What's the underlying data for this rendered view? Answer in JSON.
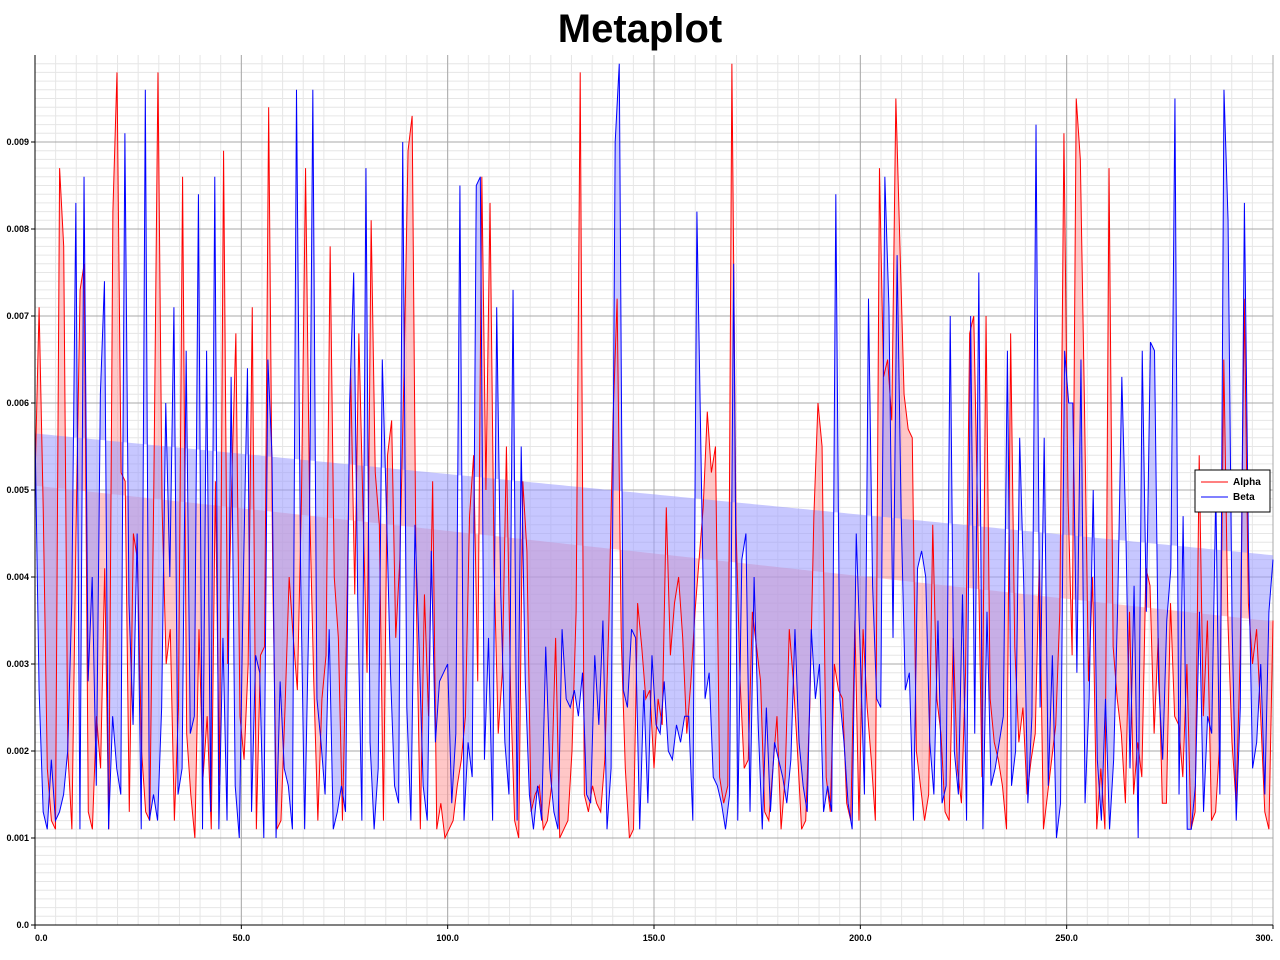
{
  "chart_data": {
    "type": "line",
    "title": "Metaplot",
    "xlabel": "",
    "ylabel": "",
    "xlim": [
      0,
      300
    ],
    "ylim": [
      0,
      0.01
    ],
    "x_ticks": [
      0,
      50,
      100,
      150,
      200,
      250,
      300
    ],
    "x_tick_labels": [
      "0.0",
      "50.0",
      "100.0",
      "150.0",
      "200.0",
      "250.0",
      "300."
    ],
    "y_ticks": [
      0,
      0.001,
      0.002,
      0.003,
      0.004,
      0.005,
      0.006,
      0.007,
      0.008,
      0.009
    ],
    "y_tick_labels": [
      "0.0",
      "0.001",
      "0.002",
      "0.003",
      "0.004",
      "0.005",
      "0.006",
      "0.007",
      "0.008",
      "0.009"
    ],
    "grid": true,
    "legend_position": "right",
    "fill_to_trend": true,
    "series": [
      {
        "name": "Alpha",
        "color": "#ff0000",
        "fill_color": "#ff9999",
        "trend": [
          0.00505,
          0.00349
        ],
        "values": [
          0.0051,
          0.0071,
          0.0048,
          0.0018,
          0.0012,
          0.0011,
          0.0087,
          0.0078,
          0.002,
          0.0011,
          0.0045,
          0.0073,
          0.0076,
          0.0013,
          0.0011,
          0.0024,
          0.0018,
          0.0041,
          0.0011,
          0.0082,
          0.0098,
          0.0052,
          0.0051,
          0.0013,
          0.0045,
          0.0042,
          0.002,
          0.0013,
          0.0012,
          0.0051,
          0.0098,
          0.0048,
          0.003,
          0.0034,
          0.0012,
          0.0025,
          0.0086,
          0.0022,
          0.0015,
          0.001,
          0.0034,
          0.0017,
          0.0024,
          0.0011,
          0.0051,
          0.0016,
          0.0089,
          0.003,
          0.0051,
          0.0068,
          0.0024,
          0.0019,
          0.003,
          0.0071,
          0.0011,
          0.0031,
          0.0032,
          0.0094,
          0.004,
          0.0011,
          0.0012,
          0.0025,
          0.004,
          0.0033,
          0.0027,
          0.0049,
          0.0087,
          0.0048,
          0.0028,
          0.0012,
          0.0026,
          0.0031,
          0.0078,
          0.004,
          0.0033,
          0.0012,
          0.0034,
          0.0064,
          0.0038,
          0.0068,
          0.0048,
          0.0029,
          0.0081,
          0.0052,
          0.0046,
          0.0012,
          0.0054,
          0.0058,
          0.0033,
          0.0042,
          0.0063,
          0.0089,
          0.0093,
          0.0038,
          0.0011,
          0.0038,
          0.0024,
          0.0051,
          0.0011,
          0.0014,
          0.001,
          0.0011,
          0.0012,
          0.0016,
          0.0019,
          0.0024,
          0.0047,
          0.0054,
          0.0028,
          0.0086,
          0.005,
          0.0083,
          0.0041,
          0.0022,
          0.0029,
          0.0055,
          0.0027,
          0.0012,
          0.001,
          0.0051,
          0.0043,
          0.0013,
          0.0015,
          0.0016,
          0.0011,
          0.0012,
          0.0016,
          0.0033,
          0.001,
          0.0011,
          0.0012,
          0.002,
          0.0036,
          0.0098,
          0.0015,
          0.0013,
          0.0016,
          0.0014,
          0.0013,
          0.0019,
          0.0035,
          0.0058,
          0.0072,
          0.0033,
          0.0018,
          0.001,
          0.0011,
          0.0037,
          0.0032,
          0.0026,
          0.0027,
          0.0018,
          0.0026,
          0.0023,
          0.0048,
          0.0031,
          0.0037,
          0.004,
          0.0033,
          0.0022,
          0.0028,
          0.0036,
          0.0042,
          0.0048,
          0.0059,
          0.0052,
          0.0055,
          0.0017,
          0.0014,
          0.0016,
          0.0099,
          0.0046,
          0.0028,
          0.0018,
          0.0019,
          0.0036,
          0.0032,
          0.0028,
          0.0013,
          0.0012,
          0.0018,
          0.0024,
          0.0011,
          0.0017,
          0.0034,
          0.0028,
          0.002,
          0.0011,
          0.0012,
          0.0025,
          0.0047,
          0.006,
          0.0055,
          0.0017,
          0.0013,
          0.003,
          0.0027,
          0.0026,
          0.0014,
          0.0012,
          0.0035,
          0.0012,
          0.0034,
          0.0025,
          0.0019,
          0.0012,
          0.0087,
          0.0063,
          0.0065,
          0.0058,
          0.0095,
          0.0078,
          0.0061,
          0.0057,
          0.0056,
          0.002,
          0.0016,
          0.0012,
          0.0015,
          0.0046,
          0.0026,
          0.0022,
          0.0013,
          0.0012,
          0.0033,
          0.0018,
          0.0014,
          0.0029,
          0.0068,
          0.007,
          0.0046,
          0.0017,
          0.007,
          0.0026,
          0.0021,
          0.0019,
          0.0016,
          0.0011,
          0.0068,
          0.0032,
          0.0021,
          0.0025,
          0.0015,
          0.0019,
          0.0022,
          0.0042,
          0.0011,
          0.0015,
          0.0019,
          0.0023,
          0.0036,
          0.0091,
          0.0049,
          0.0031,
          0.0095,
          0.0088,
          0.006,
          0.0028,
          0.004,
          0.0011,
          0.0018,
          0.0011,
          0.0087,
          0.0032,
          0.0026,
          0.0022,
          0.0014,
          0.0036,
          0.0015,
          0.0021,
          0.0017,
          0.0041,
          0.0039,
          0.0022,
          0.0033,
          0.0014,
          0.0014,
          0.0037,
          0.0024,
          0.0023,
          0.0017,
          0.003,
          0.0011,
          0.0013,
          0.0054,
          0.0024,
          0.0035,
          0.0012,
          0.0013,
          0.0021,
          0.0065,
          0.0035,
          0.0021,
          0.0014,
          0.0031,
          0.0072,
          0.0037,
          0.003,
          0.0034,
          0.0024,
          0.0013,
          0.0011,
          0.0035
        ]
      },
      {
        "name": "Beta",
        "color": "#0000ff",
        "fill_color": "#9999ff",
        "trend": [
          0.00565,
          0.00425
        ],
        "values": [
          0.0057,
          0.0027,
          0.0013,
          0.0011,
          0.0019,
          0.0012,
          0.0013,
          0.0015,
          0.002,
          0.0037,
          0.0083,
          0.0011,
          0.0086,
          0.0028,
          0.004,
          0.0016,
          0.0061,
          0.0074,
          0.0011,
          0.0024,
          0.0018,
          0.0015,
          0.0091,
          0.0037,
          0.0023,
          0.0045,
          0.0011,
          0.0096,
          0.0012,
          0.0015,
          0.0012,
          0.0025,
          0.006,
          0.004,
          0.0071,
          0.0015,
          0.0018,
          0.0066,
          0.0022,
          0.0024,
          0.0084,
          0.0011,
          0.0066,
          0.0013,
          0.0086,
          0.0011,
          0.0033,
          0.0012,
          0.0063,
          0.0016,
          0.001,
          0.004,
          0.0064,
          0.0013,
          0.0031,
          0.0029,
          0.001,
          0.0065,
          0.0054,
          0.001,
          0.0028,
          0.0018,
          0.0016,
          0.0011,
          0.0096,
          0.0041,
          0.0011,
          0.0035,
          0.0096,
          0.0026,
          0.0021,
          0.0015,
          0.0034,
          0.0011,
          0.0013,
          0.0016,
          0.0013,
          0.006,
          0.0075,
          0.0037,
          0.0012,
          0.0087,
          0.0021,
          0.0011,
          0.0018,
          0.0065,
          0.0048,
          0.0029,
          0.0016,
          0.0014,
          0.009,
          0.0025,
          0.0012,
          0.0046,
          0.0032,
          0.0016,
          0.0012,
          0.0043,
          0.0021,
          0.0028,
          0.0029,
          0.003,
          0.0014,
          0.0022,
          0.0085,
          0.0012,
          0.0021,
          0.0017,
          0.0085,
          0.0086,
          0.0019,
          0.0033,
          0.0012,
          0.0071,
          0.0038,
          0.0021,
          0.0015,
          0.0073,
          0.0012,
          0.0055,
          0.0028,
          0.0015,
          0.0011,
          0.0016,
          0.0012,
          0.0032,
          0.0018,
          0.0013,
          0.0011,
          0.0034,
          0.0026,
          0.0025,
          0.0027,
          0.0024,
          0.0029,
          0.0015,
          0.0014,
          0.0031,
          0.0023,
          0.0035,
          0.0011,
          0.0018,
          0.009,
          0.0099,
          0.0027,
          0.0025,
          0.0034,
          0.0033,
          0.0011,
          0.0027,
          0.0014,
          0.0031,
          0.0023,
          0.0022,
          0.0028,
          0.002,
          0.0019,
          0.0023,
          0.0021,
          0.0024,
          0.0024,
          0.0012,
          0.0082,
          0.0054,
          0.0026,
          0.0029,
          0.0017,
          0.0016,
          0.0014,
          0.0011,
          0.0015,
          0.0076,
          0.0012,
          0.0042,
          0.0045,
          0.0013,
          0.004,
          0.0023,
          0.0011,
          0.0025,
          0.0013,
          0.0021,
          0.0019,
          0.0017,
          0.0014,
          0.0019,
          0.0034,
          0.0021,
          0.0016,
          0.0013,
          0.0034,
          0.0026,
          0.003,
          0.0013,
          0.0016,
          0.0013,
          0.0084,
          0.0026,
          0.0021,
          0.0014,
          0.0011,
          0.0045,
          0.0031,
          0.0015,
          0.0072,
          0.0039,
          0.0026,
          0.0025,
          0.0086,
          0.0071,
          0.0033,
          0.0077,
          0.0047,
          0.0027,
          0.0029,
          0.0012,
          0.0041,
          0.0043,
          0.004,
          0.0021,
          0.0015,
          0.0035,
          0.0014,
          0.0016,
          0.007,
          0.002,
          0.0015,
          0.0038,
          0.0012,
          0.007,
          0.0022,
          0.0075,
          0.0011,
          0.0036,
          0.0016,
          0.0018,
          0.0021,
          0.0024,
          0.0066,
          0.0016,
          0.002,
          0.0056,
          0.0039,
          0.0014,
          0.0024,
          0.0092,
          0.0025,
          0.0056,
          0.0016,
          0.0031,
          0.001,
          0.0014,
          0.0066,
          0.006,
          0.006,
          0.0029,
          0.0065,
          0.0014,
          0.0026,
          0.005,
          0.0019,
          0.0012,
          0.0026,
          0.0011,
          0.0019,
          0.0037,
          0.0063,
          0.0045,
          0.0018,
          0.0039,
          0.001,
          0.0066,
          0.0036,
          0.0067,
          0.0066,
          0.0028,
          0.0019,
          0.0035,
          0.0041,
          0.0095,
          0.0015,
          0.0047,
          0.0011,
          0.0011,
          0.0016,
          0.0036,
          0.0013,
          0.0024,
          0.0022,
          0.005,
          0.0015,
          0.0096,
          0.0081,
          0.0034,
          0.0012,
          0.0025,
          0.0083,
          0.0043,
          0.0018,
          0.0021,
          0.003,
          0.0015,
          0.0036,
          0.0042
        ]
      }
    ]
  }
}
